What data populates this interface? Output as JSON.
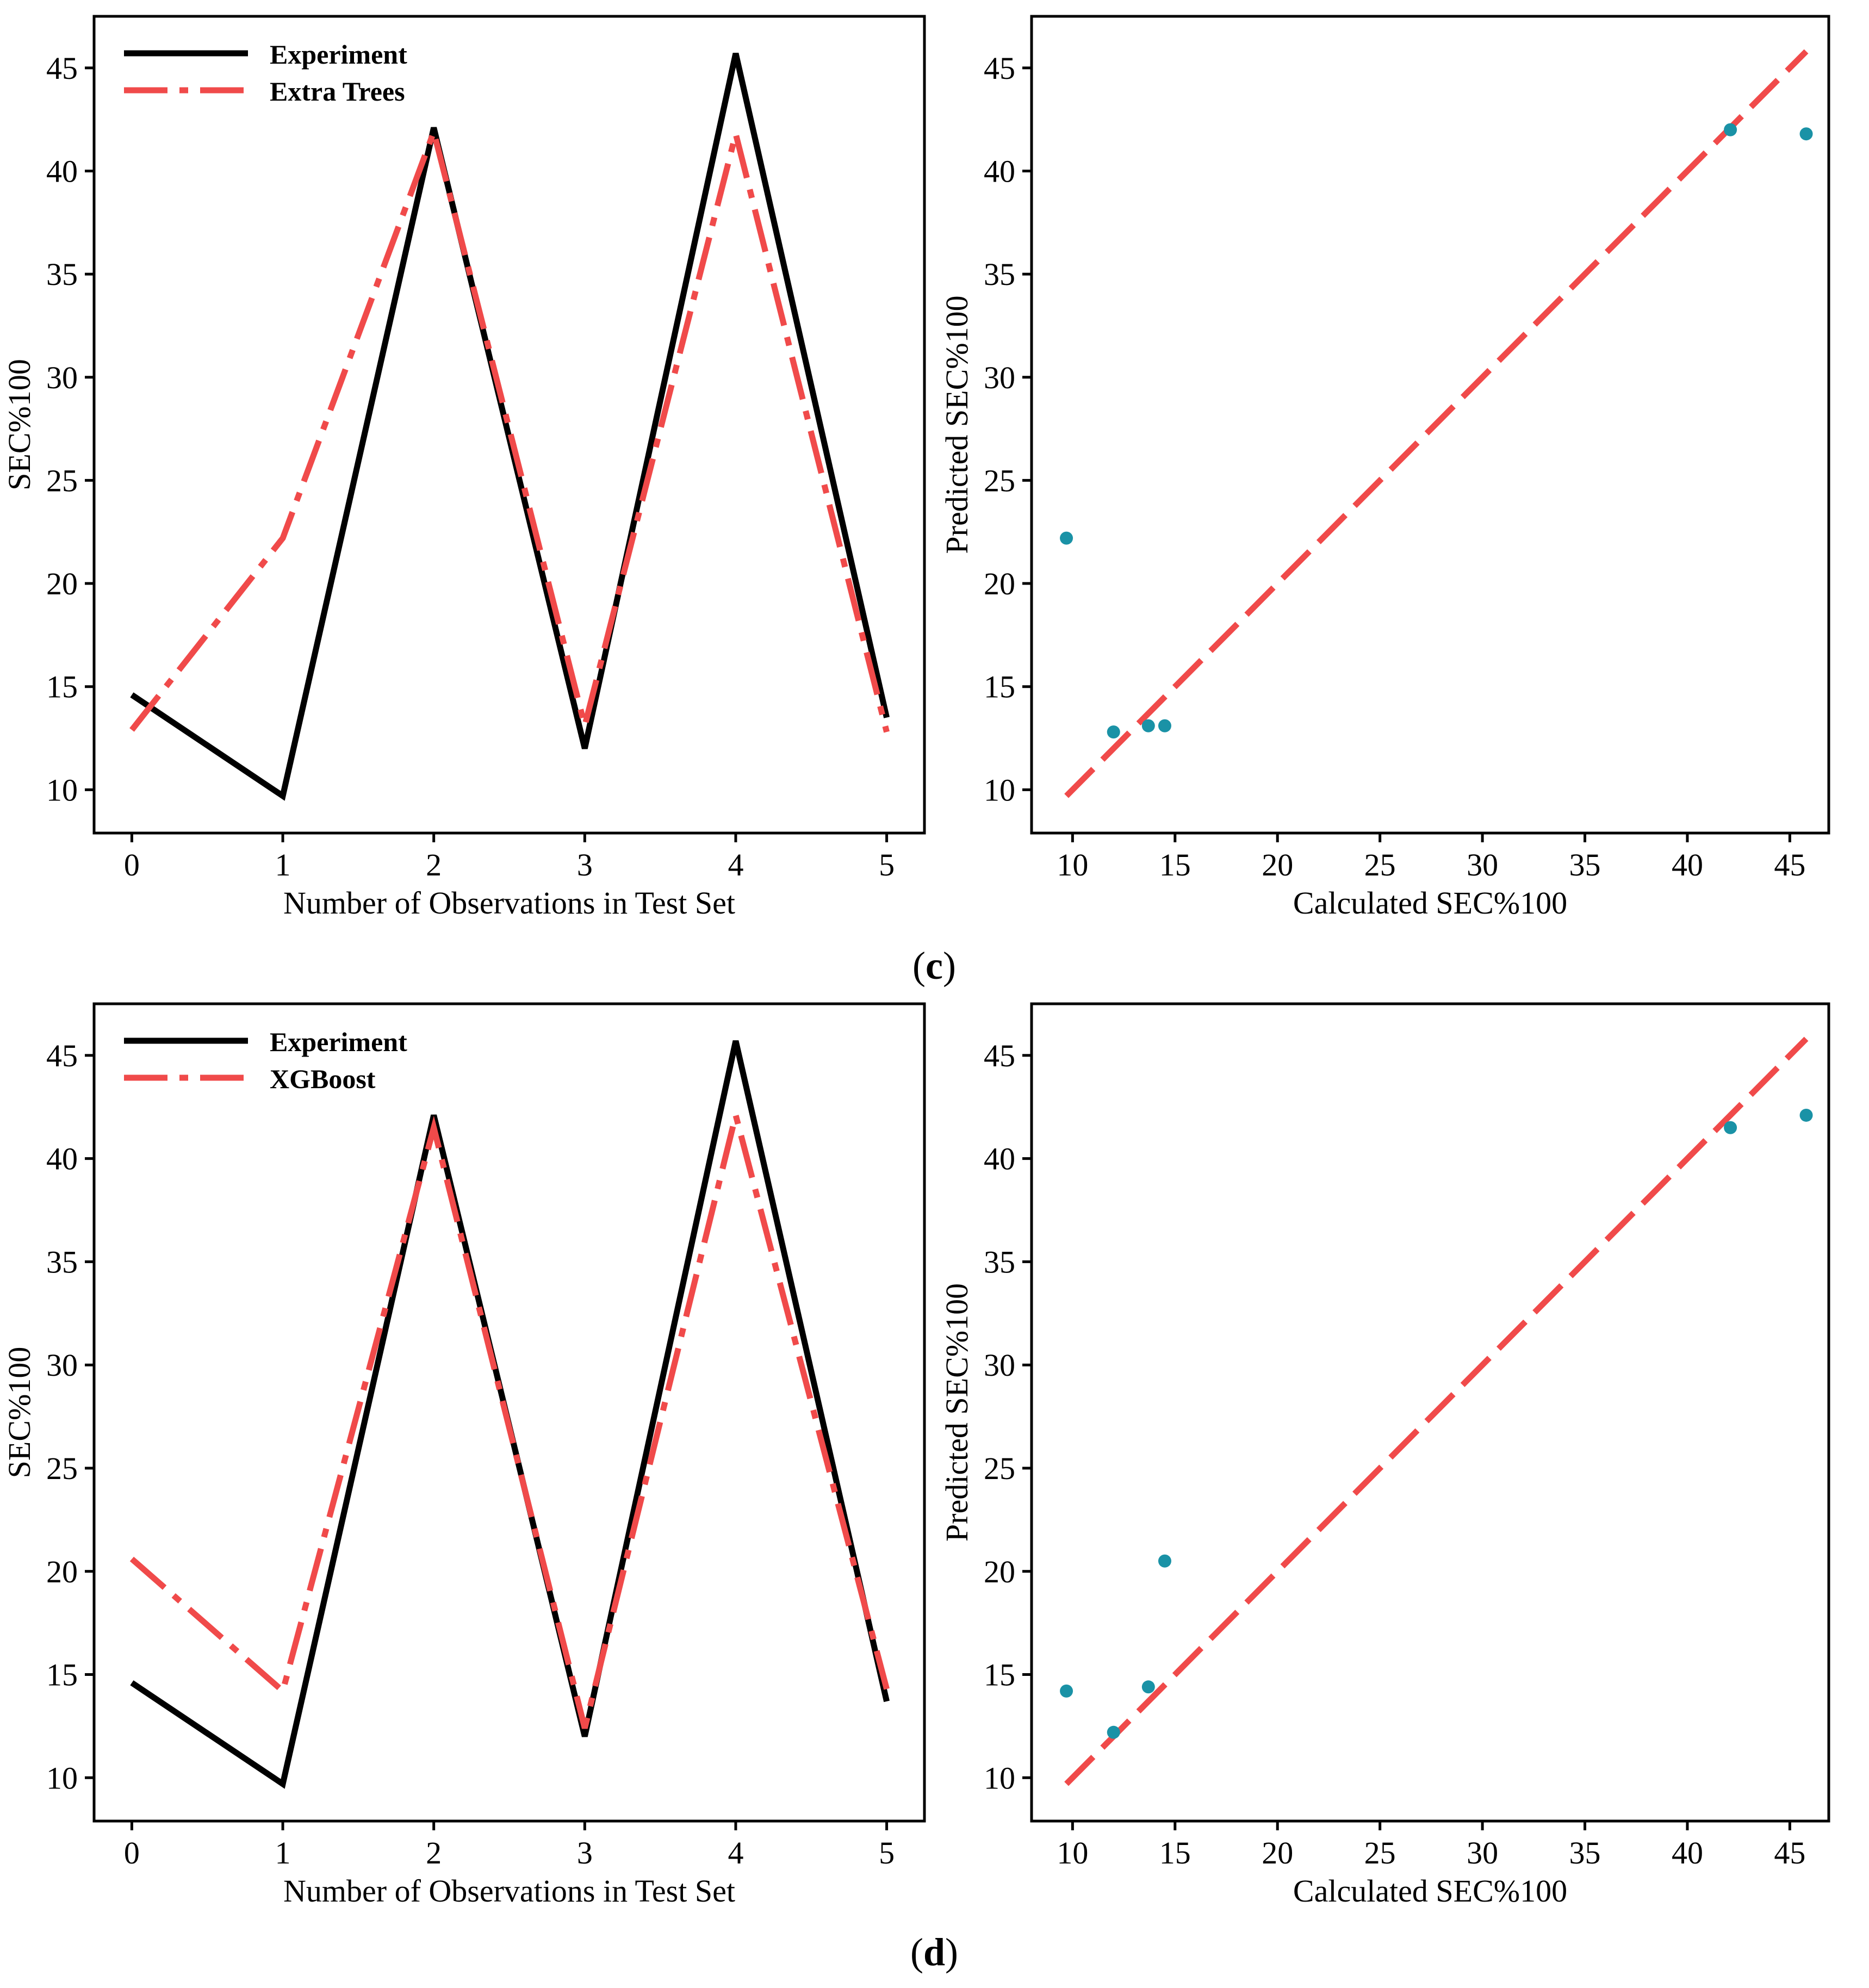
{
  "figure": {
    "panel_labels": [
      {
        "open": "(",
        "letter": "c",
        "close": ")"
      },
      {
        "open": "(",
        "letter": "d",
        "close": ")"
      }
    ]
  },
  "colors": {
    "experiment": "#000000",
    "model": "#f04a4a",
    "points": "#1a92a6",
    "axis": "#000000"
  },
  "chart_data": [
    {
      "type": "line",
      "panel": "c",
      "title": "",
      "xlabel": "Number of Observations in Test Set",
      "ylabel": "SEC%100",
      "x": [
        0,
        1,
        2,
        3,
        4,
        5
      ],
      "xticks": [
        "0",
        "1",
        "2",
        "3",
        "4",
        "5"
      ],
      "yticks": [
        "10",
        "15",
        "20",
        "25",
        "30",
        "35",
        "40",
        "45"
      ],
      "xlim": [
        -0.25,
        5.25
      ],
      "ylim": [
        7.9,
        47.5
      ],
      "legend_position": "top-left",
      "series": [
        {
          "name": "Experiment",
          "style": "solid",
          "color": "#000000",
          "values": [
            14.6,
            9.7,
            42.1,
            12.0,
            45.7,
            13.5
          ]
        },
        {
          "name": "Extra Trees",
          "style": "dashdot",
          "color": "#f04a4a",
          "values": [
            12.9,
            22.2,
            41.9,
            13.1,
            41.8,
            12.8
          ]
        }
      ]
    },
    {
      "type": "scatter",
      "panel": "c",
      "title": "",
      "xlabel": "Calculated SEC%100",
      "ylabel": "Predicted SEC%100",
      "xticks": [
        "10",
        "15",
        "20",
        "25",
        "30",
        "35",
        "40",
        "45"
      ],
      "yticks": [
        "10",
        "15",
        "20",
        "25",
        "30",
        "35",
        "40",
        "45"
      ],
      "xlim": [
        8.0,
        46.9
      ],
      "ylim": [
        7.9,
        47.5
      ],
      "points": [
        {
          "x": 9.7,
          "y": 22.2
        },
        {
          "x": 12.0,
          "y": 12.8
        },
        {
          "x": 13.7,
          "y": 13.1
        },
        {
          "x": 14.5,
          "y": 13.1
        },
        {
          "x": 42.1,
          "y": 42.0
        },
        {
          "x": 45.8,
          "y": 41.8
        }
      ],
      "reference_line": {
        "style": "dashed",
        "color": "#f04a4a",
        "from": [
          9.7,
          9.7
        ],
        "to": [
          45.8,
          45.8
        ]
      }
    },
    {
      "type": "line",
      "panel": "d",
      "title": "",
      "xlabel": "Number of Observations in Test Set",
      "ylabel": "SEC%100",
      "x": [
        0,
        1,
        2,
        3,
        4,
        5
      ],
      "xticks": [
        "0",
        "1",
        "2",
        "3",
        "4",
        "5"
      ],
      "yticks": [
        "10",
        "15",
        "20",
        "25",
        "30",
        "35",
        "40",
        "45"
      ],
      "xlim": [
        -0.25,
        5.25
      ],
      "ylim": [
        7.9,
        47.5
      ],
      "legend_position": "top-left",
      "series": [
        {
          "name": "Experiment",
          "style": "solid",
          "color": "#000000",
          "values": [
            14.6,
            9.7,
            42.1,
            12.0,
            45.7,
            13.7
          ]
        },
        {
          "name": "XGBoost",
          "style": "dashdot",
          "color": "#f04a4a",
          "values": [
            20.6,
            14.2,
            41.5,
            12.4,
            42.1,
            14.3
          ]
        }
      ]
    },
    {
      "type": "scatter",
      "panel": "d",
      "title": "",
      "xlabel": "Calculated SEC%100",
      "ylabel": "Predicted SEC%100",
      "xticks": [
        "10",
        "15",
        "20",
        "25",
        "30",
        "35",
        "40",
        "45"
      ],
      "yticks": [
        "10",
        "15",
        "20",
        "25",
        "30",
        "35",
        "40",
        "45"
      ],
      "xlim": [
        8.0,
        46.9
      ],
      "ylim": [
        7.9,
        47.5
      ],
      "points": [
        {
          "x": 9.7,
          "y": 14.2
        },
        {
          "x": 12.0,
          "y": 12.2
        },
        {
          "x": 13.7,
          "y": 14.4
        },
        {
          "x": 14.5,
          "y": 20.5
        },
        {
          "x": 42.1,
          "y": 41.5
        },
        {
          "x": 45.8,
          "y": 42.1
        }
      ],
      "reference_line": {
        "style": "dashed",
        "color": "#f04a4a",
        "from": [
          9.7,
          9.7
        ],
        "to": [
          45.8,
          45.8
        ]
      }
    }
  ]
}
